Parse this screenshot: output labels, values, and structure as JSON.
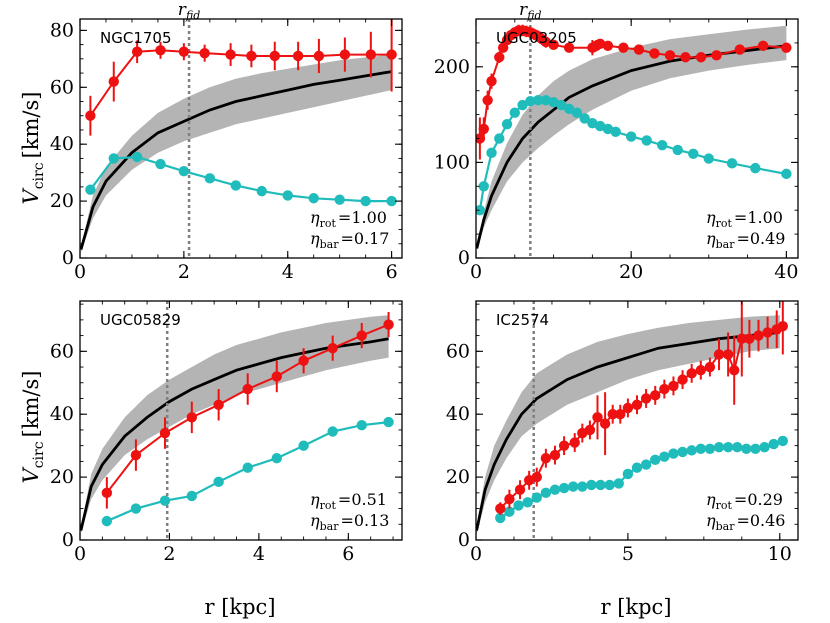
{
  "figure": {
    "ylabel_main": "V",
    "ylabel_sub": "circ",
    "ylabel_unit": "[km/s]",
    "xlabel": "r [kpc]",
    "rfid_main": "r",
    "rfid_sub": "fid",
    "eta_rot_main": "η",
    "eta_rot_sub": "rot",
    "eta_bar_main": "η",
    "eta_bar_sub": "bar"
  },
  "colors": {
    "observed": "#ee1111",
    "baryonic": "#20bcbc",
    "model": "#000000",
    "band": "#b4b4b4",
    "rfid_line": "#808080"
  },
  "chart_data": [
    {
      "type": "line",
      "title": "NGC1705",
      "xlim": [
        0,
        6.2
      ],
      "ylim": [
        0,
        84
      ],
      "xticks": [
        0,
        2,
        4,
        6
      ],
      "yticks": [
        0,
        20,
        40,
        60,
        80
      ],
      "xticklabels": [
        "0",
        "2",
        "4",
        "6"
      ],
      "yticklabels": [
        "0",
        "20",
        "40",
        "60",
        "80"
      ],
      "r_fid": 2.1,
      "show_rfid_label": true,
      "eta_rot": "=1.00",
      "eta_bar": "=0.17",
      "model": {
        "x": [
          0.02,
          0.25,
          0.5,
          1.0,
          1.5,
          2.0,
          2.5,
          3.0,
          3.5,
          4.0,
          4.5,
          5.0,
          5.5,
          6.0
        ],
        "y": [
          3,
          18,
          27,
          37,
          44,
          48,
          52,
          55,
          57,
          59,
          61,
          62.5,
          64,
          65.5
        ],
        "lo": [
          2,
          14,
          22,
          31,
          37,
          41,
          44,
          47,
          49,
          51,
          53,
          55,
          57,
          59
        ],
        "hi": [
          4,
          22,
          32,
          43,
          51,
          56,
          60,
          63,
          65,
          66.5,
          68,
          69.5,
          70.5,
          71.5
        ]
      },
      "observed": {
        "x": [
          0.2,
          0.65,
          1.1,
          1.55,
          2.0,
          2.4,
          2.9,
          3.3,
          3.75,
          4.2,
          4.6,
          5.1,
          5.6,
          6.0
        ],
        "y": [
          50,
          62,
          72.5,
          73,
          72.5,
          72,
          71.5,
          71,
          71,
          71,
          71,
          71.5,
          71.5,
          71.5
        ],
        "err": [
          7,
          7,
          4,
          3,
          3,
          3,
          4,
          4,
          5,
          5,
          6,
          6,
          8,
          13
        ]
      },
      "baryonic": {
        "x": [
          0.2,
          0.65,
          1.1,
          1.55,
          2.0,
          2.5,
          3.0,
          3.5,
          4.0,
          4.5,
          5.0,
          5.5,
          6.0
        ],
        "y": [
          24,
          35,
          35.5,
          33,
          30.5,
          28,
          25.5,
          23.5,
          22,
          21,
          20.5,
          20,
          20
        ]
      }
    },
    {
      "type": "line",
      "title": "UGC03205",
      "xlim": [
        0,
        41.5
      ],
      "ylim": [
        0,
        250
      ],
      "xticks": [
        0,
        20,
        40
      ],
      "yticks": [
        0,
        100,
        200
      ],
      "xticklabels": [
        "0",
        "20",
        "40"
      ],
      "yticklabels": [
        "0",
        "100",
        "200"
      ],
      "r_fid": 7,
      "show_rfid_label": true,
      "eta_rot": "=1.00",
      "eta_bar": "=0.49",
      "model": {
        "x": [
          0.1,
          1,
          2,
          4,
          6,
          8,
          10,
          12,
          15,
          20,
          25,
          30,
          35,
          40
        ],
        "y": [
          10,
          40,
          65,
          100,
          125,
          142,
          155,
          168,
          180,
          196,
          206,
          212,
          217,
          222
        ],
        "lo": [
          8,
          32,
          50,
          80,
          100,
          115,
          128,
          140,
          155,
          175,
          188,
          196,
          202,
          207
        ],
        "hi": [
          12,
          48,
          80,
          120,
          150,
          170,
          185,
          196,
          208,
          220,
          229,
          234,
          239,
          243
        ]
      },
      "observed": {
        "x": [
          0.5,
          1,
          1.5,
          2,
          3,
          3.5,
          4,
          4.5,
          5,
          5.5,
          6,
          6.5,
          7,
          7.5,
          8,
          8.5,
          9,
          10,
          12,
          15,
          15.5,
          16,
          17,
          19,
          21,
          23,
          25,
          27,
          29,
          31,
          34,
          37,
          40
        ],
        "y": [
          125,
          135,
          165,
          185,
          210,
          220,
          228,
          233,
          236,
          238,
          238,
          237,
          236,
          234,
          232,
          229,
          226,
          223,
          220,
          220,
          222,
          224,
          222,
          220,
          218,
          214,
          212,
          210,
          210,
          212,
          218,
          222,
          220
        ],
        "err": [
          22,
          12,
          10,
          8,
          6,
          5,
          5,
          5,
          5,
          6,
          6,
          6,
          6,
          6,
          6,
          6,
          6,
          5,
          5,
          8,
          6,
          5,
          4,
          4,
          4,
          4,
          4,
          4,
          4,
          4,
          4,
          4,
          5
        ]
      },
      "baryonic": {
        "x": [
          0.5,
          1,
          2,
          3,
          4,
          5,
          6,
          7,
          8,
          9,
          10,
          11,
          12,
          13,
          14,
          15,
          16,
          17,
          18,
          20,
          22,
          24,
          26,
          28,
          30,
          33,
          36,
          40
        ],
        "y": [
          50,
          75,
          110,
          125,
          140,
          152,
          160,
          164,
          165,
          165,
          163,
          160,
          156,
          152,
          146,
          141,
          138,
          135,
          132,
          127,
          123,
          118,
          113,
          109,
          104,
          99,
          94,
          88
        ]
      }
    },
    {
      "type": "line",
      "title": "UGC05829",
      "xlim": [
        0,
        7.2
      ],
      "ylim": [
        0,
        76
      ],
      "xticks": [
        0,
        2,
        4,
        6
      ],
      "yticks": [
        0,
        20,
        40,
        60
      ],
      "xticklabels": [
        "0",
        "2",
        "4",
        "6"
      ],
      "yticklabels": [
        "0",
        "20",
        "40",
        "60"
      ],
      "r_fid": 1.95,
      "show_rfid_label": false,
      "eta_rot": "=0.51",
      "eta_bar": "=0.13",
      "model": {
        "x": [
          0.02,
          0.25,
          0.5,
          1.0,
          1.5,
          2.0,
          2.5,
          3.0,
          3.5,
          4.0,
          4.5,
          5.0,
          5.5,
          6.0,
          6.5,
          6.9
        ],
        "y": [
          3,
          17,
          24,
          33,
          39,
          44,
          48,
          51,
          54,
          56,
          58,
          59.5,
          61,
          62,
          63,
          64
        ],
        "lo": [
          2,
          13,
          19,
          27,
          32,
          36,
          40,
          43,
          46,
          48,
          50,
          52,
          54,
          55.5,
          57,
          58
        ],
        "hi": [
          4,
          21,
          29,
          39,
          46,
          51,
          55,
          59,
          62,
          64,
          66,
          67.5,
          69,
          70,
          71,
          71.5
        ]
      },
      "observed": {
        "x": [
          0.6,
          1.25,
          1.9,
          2.5,
          3.1,
          3.75,
          4.4,
          5.0,
          5.65,
          6.3,
          6.9
        ],
        "y": [
          15,
          27,
          34,
          39,
          43,
          48,
          52,
          57,
          61,
          65,
          68.5
        ],
        "err": [
          5,
          5,
          5,
          5,
          5,
          5,
          5,
          4,
          4,
          4,
          4
        ]
      },
      "baryonic": {
        "x": [
          0.6,
          1.25,
          1.9,
          2.5,
          3.1,
          3.75,
          4.4,
          5.0,
          5.65,
          6.3,
          6.9
        ],
        "y": [
          6,
          10,
          12.5,
          14,
          18.5,
          23,
          26,
          30,
          34.5,
          36.5,
          37.5
        ]
      }
    },
    {
      "type": "line",
      "title": "IC2574",
      "xlim": [
        0,
        10.6
      ],
      "ylim": [
        0,
        76
      ],
      "xticks": [
        0,
        5,
        10
      ],
      "yticks": [
        0,
        20,
        40,
        60
      ],
      "xticklabels": [
        "0",
        "5",
        "10"
      ],
      "yticklabels": [
        "0",
        "20",
        "40",
        "60"
      ],
      "r_fid": 1.9,
      "show_rfid_label": false,
      "eta_rot": "=0.29",
      "eta_bar": "=0.46",
      "model": {
        "x": [
          0.02,
          0.3,
          0.6,
          1.0,
          1.5,
          2.0,
          2.5,
          3.0,
          4.0,
          5.0,
          6.0,
          7.0,
          8.0,
          9.0,
          10.0
        ],
        "y": [
          3,
          16,
          24,
          32,
          40,
          45,
          48,
          51,
          55,
          58,
          61,
          62.5,
          64,
          65,
          66
        ],
        "lo": [
          2,
          12,
          19,
          26,
          33,
          37,
          40,
          43,
          47,
          51,
          54,
          56,
          58,
          60,
          61
        ],
        "hi": [
          4,
          20,
          30,
          38,
          47,
          53,
          56,
          59,
          63,
          65.5,
          67.5,
          69,
          70,
          71,
          71.5
        ]
      },
      "observed": {
        "x": [
          0.8,
          1.1,
          1.45,
          1.75,
          2.0,
          2.3,
          2.6,
          2.9,
          3.25,
          3.5,
          3.75,
          4.0,
          4.25,
          4.5,
          4.75,
          5.0,
          5.3,
          5.6,
          5.9,
          6.2,
          6.5,
          6.8,
          7.1,
          7.4,
          7.7,
          8.0,
          8.3,
          8.5,
          8.75,
          9.0,
          9.3,
          9.6,
          9.9,
          10.1
        ],
        "y": [
          10,
          13,
          16,
          19,
          20,
          26,
          27,
          30,
          31,
          34,
          35,
          39,
          37,
          40,
          40,
          42,
          43,
          45,
          46,
          48,
          49,
          51,
          53,
          54,
          55,
          59,
          59,
          54,
          64,
          64,
          65,
          66,
          67,
          68
        ],
        "err": [
          2,
          3,
          3,
          3,
          3,
          3,
          3,
          3,
          3,
          3,
          3,
          7,
          10,
          3,
          3,
          3,
          3,
          3,
          3,
          3,
          3,
          3,
          3,
          3,
          3,
          5,
          7,
          11,
          12,
          6,
          5,
          5,
          6,
          9
        ]
      },
      "baryonic": {
        "x": [
          0.8,
          1.1,
          1.4,
          1.7,
          2.0,
          2.3,
          2.6,
          2.9,
          3.2,
          3.5,
          3.8,
          4.1,
          4.4,
          4.7,
          5.0,
          5.3,
          5.6,
          5.9,
          6.2,
          6.5,
          6.8,
          7.1,
          7.4,
          7.7,
          8.0,
          8.3,
          8.6,
          8.9,
          9.2,
          9.5,
          9.8,
          10.1
        ],
        "y": [
          7,
          9,
          11,
          12,
          13.5,
          15,
          16,
          16.5,
          17,
          17,
          17.5,
          17.5,
          17.5,
          18,
          21,
          23,
          24,
          25.5,
          26.5,
          27.5,
          28,
          28.5,
          29,
          29,
          29.5,
          29.5,
          29.5,
          29,
          29,
          29.5,
          30.5,
          31.5
        ]
      }
    }
  ]
}
